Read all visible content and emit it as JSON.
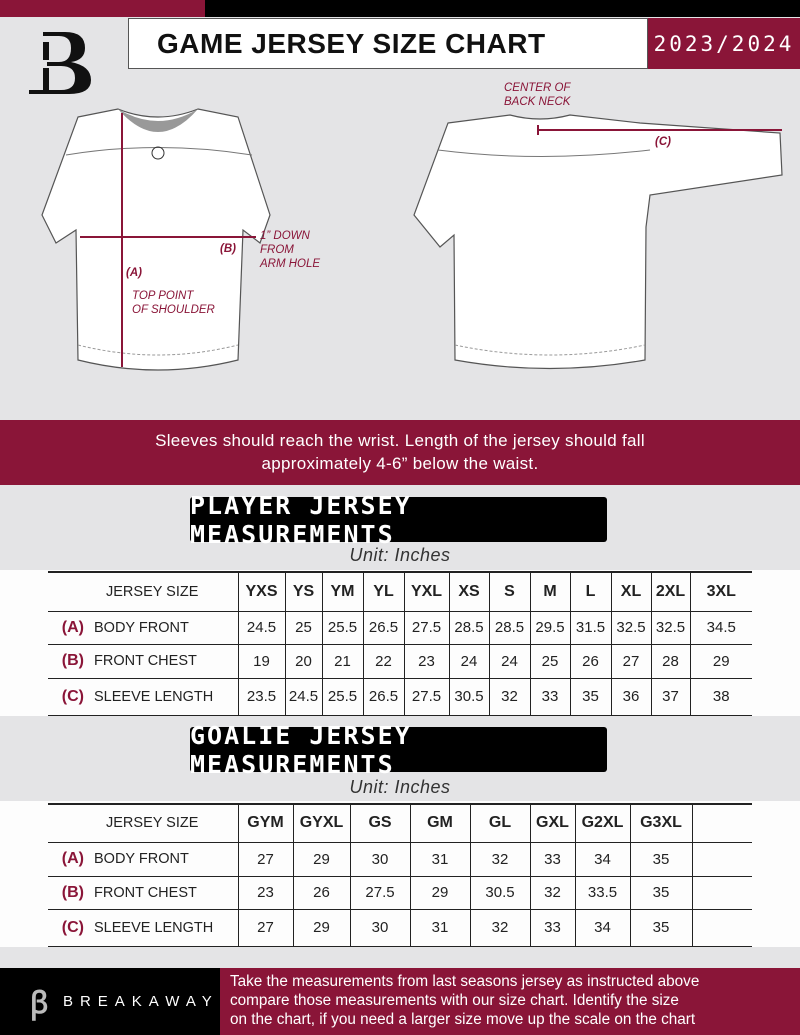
{
  "header": {
    "title": "GAME JERSEY SIZE CHART",
    "season": "2023/2024",
    "logo_letter": "B"
  },
  "diagram": {
    "label_a": "(A)",
    "label_b": "(B)",
    "label_c": "(C)",
    "top_point": [
      "TOP POINT",
      "OF SHOULDER"
    ],
    "down_from": [
      "1” DOWN",
      "FROM",
      "ARM HOLE"
    ],
    "center_back": [
      "CENTER OF",
      "BACK NECK"
    ]
  },
  "banner": [
    "Sleeves should reach the wrist. Length of the jersey should fall",
    "approximately 4-6” below the waist."
  ],
  "player": {
    "title": "PLAYER JERSEY MEASUREMENTS",
    "unit": "Unit: Inches",
    "size_label": "JERSEY SIZE",
    "sizes": [
      "YXS",
      "YS",
      "YM",
      "YL",
      "YXL",
      "XS",
      "S",
      "M",
      "L",
      "XL",
      "2XL",
      "3XL"
    ],
    "rows": [
      {
        "letter": "(A)",
        "name": "BODY FRONT",
        "values": [
          "24.5",
          "25",
          "25.5",
          "26.5",
          "27.5",
          "28.5",
          "28.5",
          "29.5",
          "31.5",
          "32.5",
          "32.5",
          "34.5"
        ]
      },
      {
        "letter": "(B)",
        "name": "FRONT CHEST",
        "values": [
          "19",
          "20",
          "21",
          "22",
          "23",
          "24",
          "24",
          "25",
          "26",
          "27",
          "28",
          "29"
        ]
      },
      {
        "letter": "(C)",
        "name": "SLEEVE LENGTH",
        "values": [
          "23.5",
          "24.5",
          "25.5",
          "26.5",
          "27.5",
          "30.5",
          "32",
          "33",
          "35",
          "36",
          "37",
          "38"
        ]
      }
    ]
  },
  "goalie": {
    "title": "GOALIE JERSEY MEASUREMENTS",
    "unit": "Unit: Inches",
    "size_label": "JERSEY SIZE",
    "sizes": [
      "GYM",
      "GYXL",
      "GS",
      "GM",
      "GL",
      "GXL",
      "G2XL",
      "G3XL",
      ""
    ],
    "rows": [
      {
        "letter": "(A)",
        "name": "BODY FRONT",
        "values": [
          "27",
          "29",
          "30",
          "31",
          "32",
          "33",
          "34",
          "35",
          ""
        ]
      },
      {
        "letter": "(B)",
        "name": "FRONT CHEST",
        "values": [
          "23",
          "26",
          "27.5",
          "29",
          "30.5",
          "32",
          "33.5",
          "35",
          ""
        ]
      },
      {
        "letter": "(C)",
        "name": "SLEEVE LENGTH",
        "values": [
          "27",
          "29",
          "30",
          "31",
          "32",
          "33",
          "34",
          "35",
          ""
        ]
      }
    ]
  },
  "footer": {
    "brand": "BREAKAWAY",
    "text": [
      "Take the measurements from last seasons jersey as instructed above",
      "compare those measurements  with our size chart. Identify the size",
      "on the chart, if you need a larger size move up the scale on the chart"
    ]
  },
  "colors": {
    "brand": "#8a1538",
    "dark": "#000000",
    "background": "#e4e4e6"
  }
}
